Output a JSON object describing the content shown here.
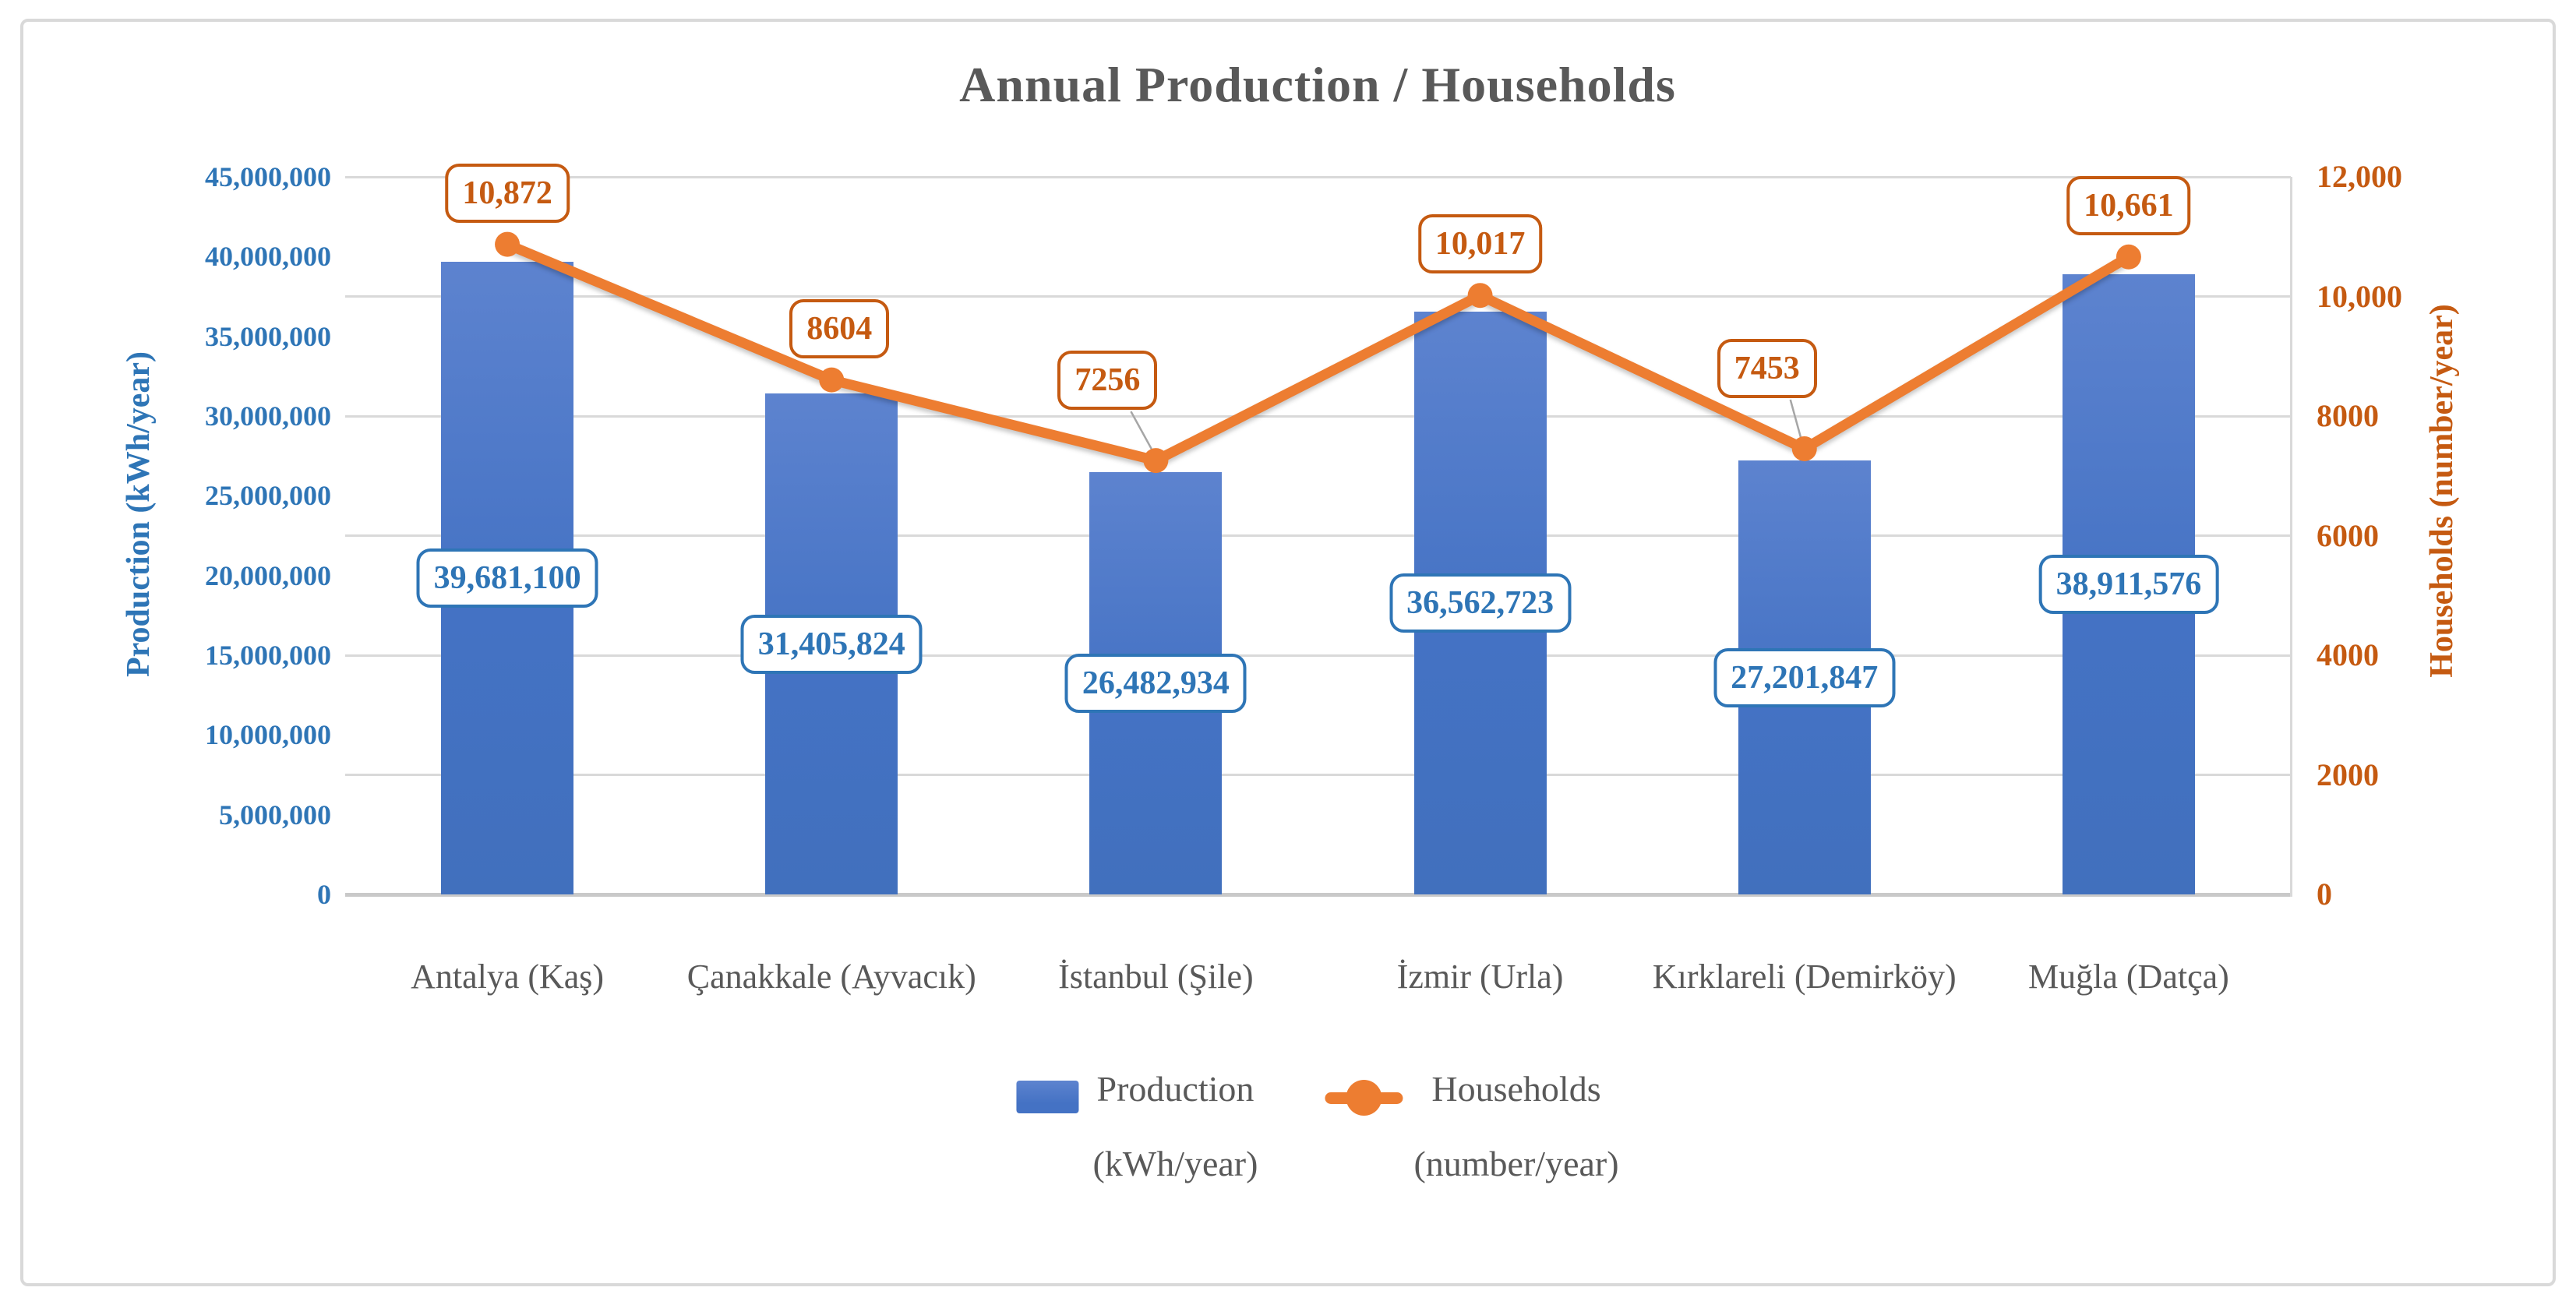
{
  "window": {
    "background": "#FFFFFF",
    "border_color": "#D9D9D9"
  },
  "chart_data": {
    "type": "combo-bar-line",
    "title": "Annual Production / Households",
    "title_color": "#595959",
    "categories": [
      "Antalya (Kaş)",
      "Çanakkale (Ayvacık)",
      "İstanbul (Şile)",
      "İzmir (Urla)",
      "Kırklareli (Demirköy)",
      "Muğla (Datça)"
    ],
    "series": [
      {
        "name": "Production (kWh/year)",
        "type": "bar",
        "axis": "primary",
        "color": "#4472C4",
        "label_color": "#2E75B6",
        "values": [
          39681100,
          31405824,
          26482934,
          36562723,
          27201847,
          38911576
        ],
        "data_labels": [
          "39,681,100",
          "31,405,824",
          "26,482,934",
          "36,562,723",
          "27,201,847",
          "38,911,576"
        ]
      },
      {
        "name": "Households (number/year)",
        "type": "line",
        "axis": "secondary",
        "color": "#ED7D31",
        "label_color": "#C55A11",
        "values": [
          10872,
          8604,
          7256,
          10017,
          7453,
          10661
        ],
        "data_labels": [
          "10,872",
          "8604",
          "7256",
          "10,017",
          "7453",
          "10,661"
        ],
        "label_offsets": [
          [
            0,
            0
          ],
          [
            10,
            0
          ],
          [
            -62,
            -37
          ],
          [
            0,
            0
          ],
          [
            -48,
            -37
          ],
          [
            0,
            0
          ]
        ],
        "label_leader_line": [
          false,
          false,
          true,
          false,
          true,
          false
        ]
      }
    ],
    "primary_axis": {
      "title": "Production (kWh/year)",
      "min": 0,
      "max": 45000000,
      "step": 5000000,
      "color": "#2E75B6",
      "ticks": [
        "45,000,000",
        "40,000,000",
        "35,000,000",
        "30,000,000",
        "25,000,000",
        "20,000,000",
        "15,000,000",
        "10,000,000",
        "5,000,000",
        "0"
      ]
    },
    "secondary_axis": {
      "title": "Households (number/year)",
      "min": 0,
      "max": 12000,
      "step": 2000,
      "color": "#C55A11",
      "ticks": [
        "12,000",
        "10,000",
        "8000",
        "6000",
        "4000",
        "2000",
        "0"
      ]
    },
    "gridlines": {
      "axis": "secondary",
      "color": "#D9D9D9",
      "on": true
    },
    "legend": {
      "position": "bottom",
      "items": [
        {
          "swatch": "bar-swatch",
          "label_lines": [
            "Production",
            "(kWh/year)"
          ]
        },
        {
          "swatch": "line-marker-swatch",
          "label_lines": [
            "Households",
            "(number/year)"
          ]
        }
      ]
    }
  }
}
